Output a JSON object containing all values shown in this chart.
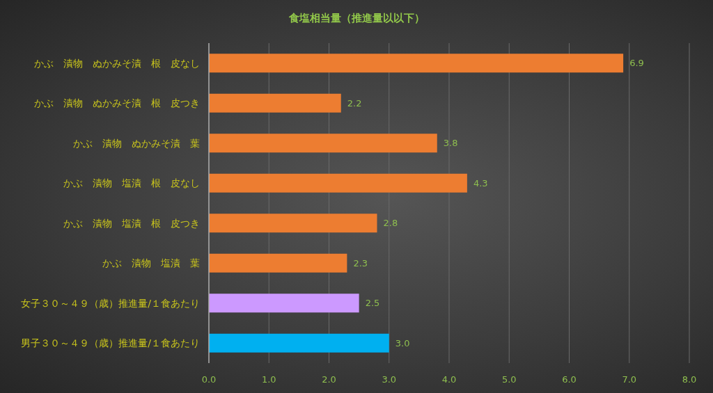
{
  "chart_data": {
    "type": "bar",
    "orientation": "horizontal",
    "title": "食塩相当量（推進量以以下）",
    "categories": [
      "かぶ　漬物　ぬかみそ漬　根　皮なし",
      "かぶ　漬物　ぬかみそ漬　根　皮つき",
      "かぶ　漬物　ぬかみそ漬　葉",
      "かぶ　漬物　塩漬　根　皮なし",
      "かぶ　漬物　塩漬　根　皮つき",
      "かぶ　漬物　塩漬　葉",
      "女子３０～４９（歳）推進量/１食あたり",
      "男子３０～４９（歳）推進量/１食あたり"
    ],
    "values": [
      6.9,
      2.2,
      3.8,
      4.3,
      2.8,
      2.3,
      2.5,
      3.0
    ],
    "colors": [
      "#ed7d31",
      "#ed7d31",
      "#ed7d31",
      "#ed7d31",
      "#ed7d31",
      "#ed7d31",
      "#cc99ff",
      "#00b0f0"
    ],
    "value_labels": [
      "6.9",
      "2.2",
      "3.8",
      "4.3",
      "2.8",
      "2.3",
      "2.5",
      "3.0"
    ],
    "xlim": [
      0,
      8
    ],
    "xticks": [
      {
        "value": 0,
        "label": "0.0"
      },
      {
        "value": 1,
        "label": "1.0"
      },
      {
        "value": 2,
        "label": "2.0"
      },
      {
        "value": 3,
        "label": "3.0"
      },
      {
        "value": 4,
        "label": "4.0"
      },
      {
        "value": 5,
        "label": "5.0"
      },
      {
        "value": 6,
        "label": "6.0"
      },
      {
        "value": 7,
        "label": "7.0"
      },
      {
        "value": 8,
        "label": "8.0"
      }
    ],
    "grid": "x"
  }
}
